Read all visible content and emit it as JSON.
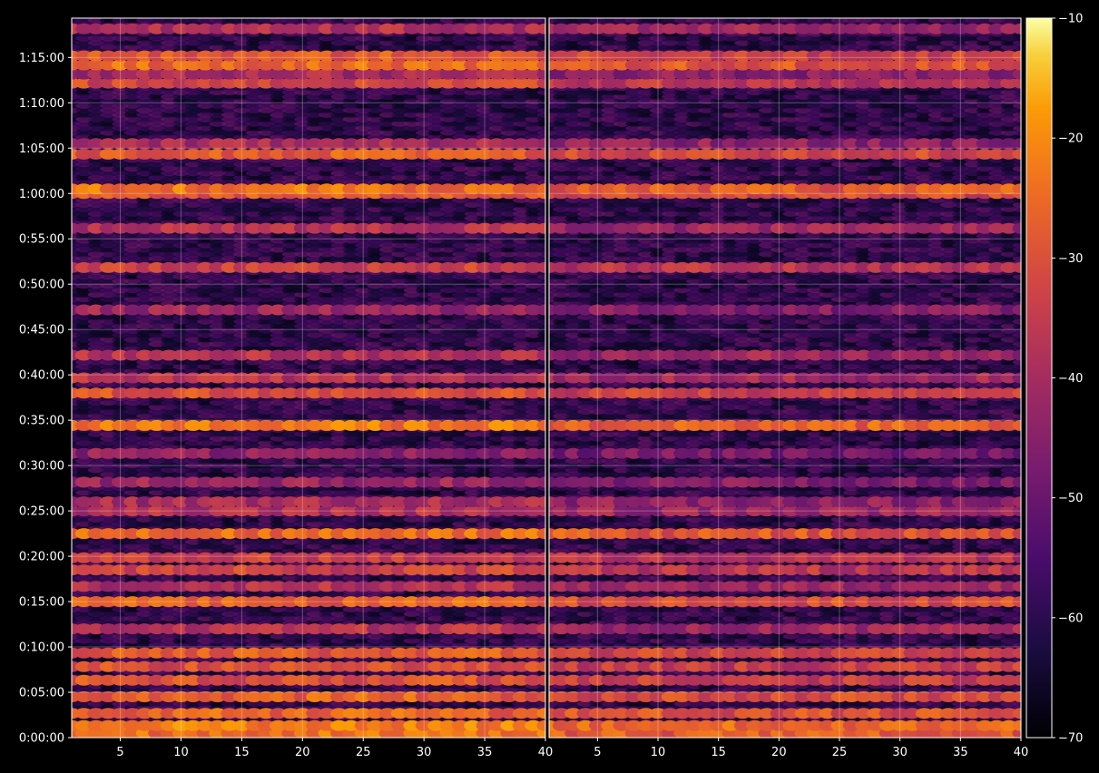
{
  "chart_data": [
    {
      "type": "heatmap",
      "title": "",
      "xlabel": "",
      "ylabel": "",
      "xlim": [
        1,
        40
      ],
      "ylim": [
        0,
        4760
      ],
      "x_ticks": [
        "5",
        "10",
        "15",
        "20",
        "25",
        "30",
        "35",
        "40"
      ],
      "x_tick_values": [
        5,
        10,
        15,
        20,
        25,
        30,
        35,
        40
      ],
      "y_ticks": [
        "0:00:00",
        "0:05:00",
        "0:10:00",
        "0:15:00",
        "0:20:00",
        "0:25:00",
        "0:30:00",
        "0:35:00",
        "0:40:00",
        "0:45:00",
        "0:50:00",
        "0:55:00",
        "1:00:00",
        "1:05:00",
        "1:10:00",
        "1:15:00"
      ],
      "y_tick_seconds": [
        0,
        300,
        600,
        900,
        1200,
        1500,
        1800,
        2100,
        2400,
        2700,
        3000,
        3300,
        3600,
        3900,
        4200,
        4500
      ],
      "grid": true,
      "colormap": "inferno",
      "value_range": [
        -70,
        -10
      ],
      "band_levels": [
        {
          "time": 30,
          "level": -24
        },
        {
          "time": 80,
          "level": -22
        },
        {
          "time": 160,
          "level": -26
        },
        {
          "time": 270,
          "level": -27
        },
        {
          "time": 380,
          "level": -30
        },
        {
          "time": 470,
          "level": -31
        },
        {
          "time": 560,
          "level": -28
        },
        {
          "time": 720,
          "level": -37
        },
        {
          "time": 900,
          "level": -27
        },
        {
          "time": 1000,
          "level": -38
        },
        {
          "time": 1110,
          "level": -33
        },
        {
          "time": 1190,
          "level": -34
        },
        {
          "time": 1350,
          "level": -25
        },
        {
          "time": 1500,
          "level": -38
        },
        {
          "time": 1560,
          "level": -40
        },
        {
          "time": 1690,
          "level": -42
        },
        {
          "time": 1880,
          "level": -44
        },
        {
          "time": 2065,
          "level": -23
        },
        {
          "time": 2280,
          "level": -30
        },
        {
          "time": 2380,
          "level": -37
        },
        {
          "time": 2530,
          "level": -38
        },
        {
          "time": 2830,
          "level": -42
        },
        {
          "time": 3110,
          "level": -33
        },
        {
          "time": 3370,
          "level": -38
        },
        {
          "time": 3600,
          "level": -28
        },
        {
          "time": 3630,
          "level": -24
        },
        {
          "time": 3860,
          "level": -28
        },
        {
          "time": 3930,
          "level": -40
        },
        {
          "time": 4330,
          "level": -32
        },
        {
          "time": 4390,
          "level": -40
        },
        {
          "time": 4450,
          "level": -25
        },
        {
          "time": 4510,
          "level": -29
        },
        {
          "time": 4690,
          "level": -38
        }
      ]
    },
    {
      "type": "heatmap",
      "title": "",
      "xlabel": "",
      "ylabel": "",
      "xlim": [
        1,
        40
      ],
      "ylim": [
        0,
        4760
      ],
      "x_ticks": [
        "5",
        "10",
        "15",
        "20",
        "25",
        "30",
        "35",
        "40"
      ],
      "x_tick_values": [
        5,
        10,
        15,
        20,
        25,
        30,
        35,
        40
      ],
      "grid": true,
      "colormap": "inferno",
      "value_range": [
        -70,
        -10
      ],
      "band_levels": [
        {
          "time": 30,
          "level": -28
        },
        {
          "time": 80,
          "level": -26
        },
        {
          "time": 160,
          "level": -30
        },
        {
          "time": 270,
          "level": -31
        },
        {
          "time": 380,
          "level": -34
        },
        {
          "time": 470,
          "level": -35
        },
        {
          "time": 560,
          "level": -32
        },
        {
          "time": 720,
          "level": -41
        },
        {
          "time": 900,
          "level": -31
        },
        {
          "time": 1000,
          "level": -42
        },
        {
          "time": 1110,
          "level": -37
        },
        {
          "time": 1190,
          "level": -38
        },
        {
          "time": 1350,
          "level": -29
        },
        {
          "time": 1500,
          "level": -42
        },
        {
          "time": 1560,
          "level": -44
        },
        {
          "time": 1690,
          "level": -46
        },
        {
          "time": 1880,
          "level": -48
        },
        {
          "time": 2065,
          "level": -27
        },
        {
          "time": 2280,
          "level": -34
        },
        {
          "time": 2380,
          "level": -41
        },
        {
          "time": 2530,
          "level": -42
        },
        {
          "time": 2830,
          "level": -46
        },
        {
          "time": 3110,
          "level": -37
        },
        {
          "time": 3370,
          "level": -42
        },
        {
          "time": 3600,
          "level": -32
        },
        {
          "time": 3630,
          "level": -28
        },
        {
          "time": 3860,
          "level": -32
        },
        {
          "time": 3930,
          "level": -44
        },
        {
          "time": 4330,
          "level": -36
        },
        {
          "time": 4390,
          "level": -44
        },
        {
          "time": 4450,
          "level": -29
        },
        {
          "time": 4510,
          "level": -33
        },
        {
          "time": 4690,
          "level": -42
        }
      ]
    }
  ],
  "colorbar": {
    "ticks": [
      "−10",
      "−20",
      "−30",
      "−40",
      "−50",
      "−60",
      "−70"
    ],
    "tick_values": [
      -10,
      -20,
      -30,
      -40,
      -50,
      -60,
      -70
    ]
  },
  "colors": {
    "background": "#000000",
    "axis": "#ffffff",
    "grid": "#ffffff"
  }
}
